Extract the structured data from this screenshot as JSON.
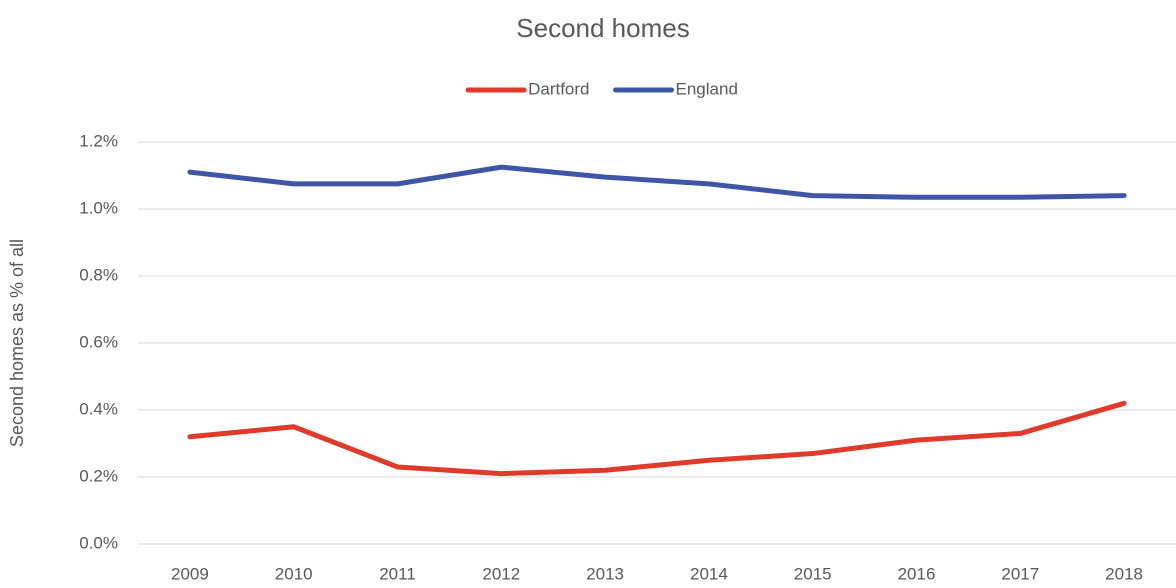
{
  "chart_data": {
    "type": "line",
    "title": "Second homes",
    "y_label": "Second homes as % of all",
    "categories": [
      "2009",
      "2010",
      "2011",
      "2012",
      "2013",
      "2014",
      "2015",
      "2016",
      "2017",
      "2018"
    ],
    "series": [
      {
        "name": "Dartford",
        "color": "#e03a2a",
        "values": [
          0.32,
          0.35,
          0.23,
          0.21,
          0.22,
          0.25,
          0.27,
          0.31,
          0.33,
          0.42
        ]
      },
      {
        "name": "England",
        "color": "#3f56a6",
        "values": [
          1.11,
          1.075,
          1.075,
          1.125,
          1.095,
          1.075,
          1.04,
          1.035,
          1.035,
          1.04
        ]
      }
    ],
    "ylim": [
      0,
      1.2
    ],
    "yticks": [
      {
        "value": 0,
        "label": "0.0%"
      },
      {
        "value": 0.2,
        "label": "0.2%"
      },
      {
        "value": 0.4,
        "label": "0.4%"
      },
      {
        "value": 0.6,
        "label": "0.6%"
      },
      {
        "value": 0.8,
        "label": "0.8%"
      },
      {
        "value": 1.0,
        "label": "1.0%"
      },
      {
        "value": 1.2,
        "label": "1.2%"
      }
    ],
    "grid": true,
    "legend": "top"
  }
}
